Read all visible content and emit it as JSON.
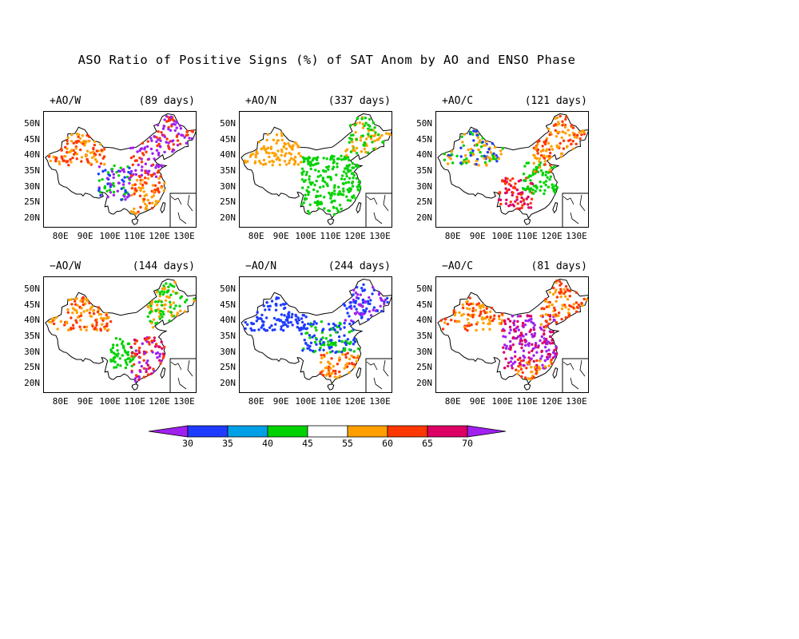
{
  "title": "ASO Ratio of Positive Signs (%) of SAT Anom by AO and ENSO Phase",
  "axes": {
    "lat_ticks": [
      "50N",
      "45N",
      "40N",
      "35N",
      "30N",
      "25N",
      "20N"
    ],
    "lon_ticks": [
      "80E",
      "90E",
      "100E",
      "110E",
      "120E",
      "130E"
    ]
  },
  "panels": [
    {
      "label": "+AO/W",
      "days": "(89 days)"
    },
    {
      "label": "+AO/N",
      "days": "(337 days)"
    },
    {
      "label": "+AO/C",
      "days": "(121 days)"
    },
    {
      "label": "−AO/W",
      "days": "(144 days)"
    },
    {
      "label": "−AO/N",
      "days": "(244 days)"
    },
    {
      "label": "−AO/C",
      "days": "(81 days)"
    }
  ],
  "colorbar": {
    "labels": [
      "30",
      "35",
      "40",
      "45",
      "55",
      "60",
      "65",
      "70"
    ],
    "colors": [
      "#a020f0",
      "#1e3cff",
      "#00a0e6",
      "#00d200",
      "#ffffff",
      "#ffa000",
      "#ff3700",
      "#dc0064",
      "#a020f0"
    ]
  },
  "chart_data": {
    "type": "scatter",
    "title": "ASO Ratio of Positive Signs (%) of SAT Anom by AO and ENSO Phase",
    "lon_range": [
      73,
      135
    ],
    "lat_range": [
      17,
      54
    ],
    "category_edges": [
      30,
      35,
      40,
      45,
      55,
      60,
      65,
      70
    ],
    "category_order": [
      "<30",
      "30-35",
      "35-40",
      "40-45",
      "45-55",
      "55-60",
      "60-65",
      "65-70",
      ">70"
    ],
    "panels": [
      {
        "label": "+AO/W",
        "days": 89,
        "regions": [
          {
            "lon": [
              75,
              98
            ],
            "lat": [
              37,
              48
            ],
            "pattern": "mixed orange/red"
          },
          {
            "lon": [
              95,
              108
            ],
            "lat": [
              26,
              37
            ],
            "pattern": "blue/purple/green"
          },
          {
            "lon": [
              108,
              134
            ],
            "lat": [
              33,
              53
            ],
            "pattern": "purple/red"
          },
          {
            "lon": [
              108,
              122
            ],
            "lat": [
              20,
              33
            ],
            "pattern": "orange/red"
          }
        ]
      },
      {
        "label": "+AO/N",
        "days": 337,
        "regions": [
          {
            "lon": [
              75,
              98
            ],
            "lat": [
              37,
              48
            ],
            "pattern": "orange"
          },
          {
            "lon": [
              98,
              122
            ],
            "lat": [
              20,
              40
            ],
            "pattern": "green"
          },
          {
            "lon": [
              115,
              134
            ],
            "lat": [
              40,
              53
            ],
            "pattern": "green/orange"
          }
        ]
      },
      {
        "label": "+AO/C",
        "days": 121,
        "regions": [
          {
            "lon": [
              75,
              100
            ],
            "lat": [
              37,
              48
            ],
            "pattern": "orange/green/blue"
          },
          {
            "lon": [
              98,
              112
            ],
            "lat": [
              23,
              33
            ],
            "pattern": "red/magenta"
          },
          {
            "lon": [
              108,
              122
            ],
            "lat": [
              28,
              38
            ],
            "pattern": "green"
          },
          {
            "lon": [
              112,
              134
            ],
            "lat": [
              35,
              53
            ],
            "pattern": "orange/red"
          }
        ]
      },
      {
        "label": "−AO/W",
        "days": 144,
        "regions": [
          {
            "lon": [
              75,
              100
            ],
            "lat": [
              37,
              48
            ],
            "pattern": "orange/red"
          },
          {
            "lon": [
              100,
              110
            ],
            "lat": [
              25,
              35
            ],
            "pattern": "green"
          },
          {
            "lon": [
              108,
              122
            ],
            "lat": [
              20,
              35
            ],
            "pattern": "red/magenta/purple"
          },
          {
            "lon": [
              115,
              134
            ],
            "lat": [
              38,
              53
            ],
            "pattern": "orange/green"
          }
        ]
      },
      {
        "label": "−AO/N",
        "days": 244,
        "regions": [
          {
            "lon": [
              75,
              100
            ],
            "lat": [
              37,
              48
            ],
            "pattern": "blue"
          },
          {
            "lon": [
              98,
              122
            ],
            "lat": [
              30,
              40
            ],
            "pattern": "blue/green"
          },
          {
            "lon": [
              105,
              122
            ],
            "lat": [
              20,
              30
            ],
            "pattern": "orange/red"
          },
          {
            "lon": [
              115,
              134
            ],
            "lat": [
              38,
              53
            ],
            "pattern": "blue/purple"
          }
        ]
      },
      {
        "label": "−AO/C",
        "days": 81,
        "regions": [
          {
            "lon": [
              75,
              100
            ],
            "lat": [
              37,
              48
            ],
            "pattern": "orange/red"
          },
          {
            "lon": [
              100,
              122
            ],
            "lat": [
              25,
              42
            ],
            "pattern": "purple/magenta"
          },
          {
            "lon": [
              105,
              122
            ],
            "lat": [
              20,
              28
            ],
            "pattern": "orange/red"
          },
          {
            "lon": [
              115,
              134
            ],
            "lat": [
              38,
              53
            ],
            "pattern": "red/orange"
          }
        ]
      }
    ]
  }
}
